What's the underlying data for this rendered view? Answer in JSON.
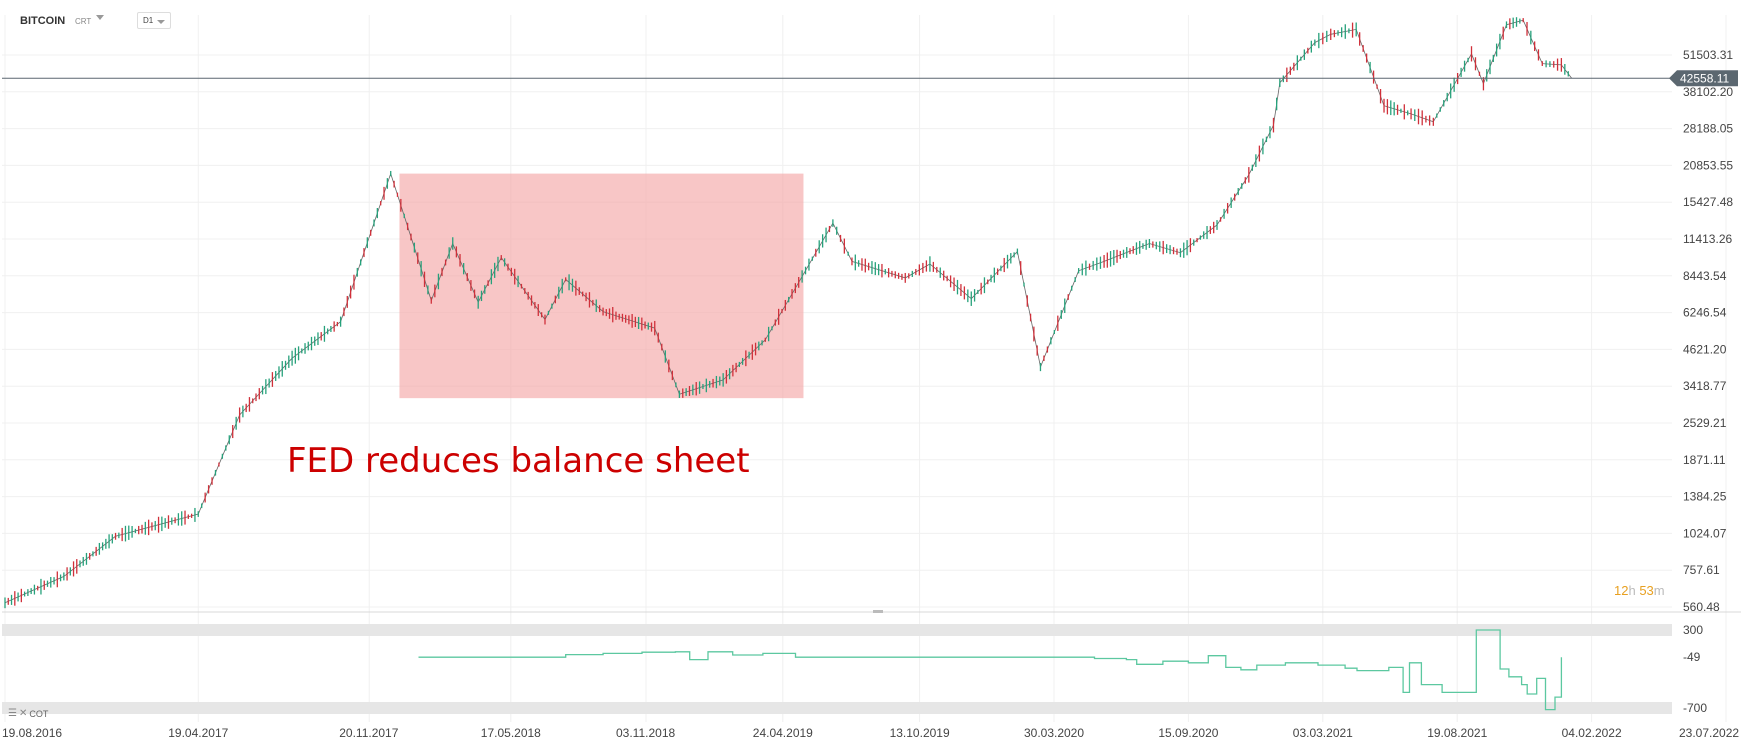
{
  "header": {
    "symbol": "BITCOIN",
    "symbol_type": "CRT",
    "timeframe": "D1"
  },
  "annotation": {
    "text": "FED reduces balance sheet",
    "color": "#cc0000"
  },
  "countdown": {
    "hours": "12",
    "hours_unit": "h",
    "minutes": "53",
    "minutes_unit": "m"
  },
  "indicator": {
    "label": "COT"
  },
  "colors": {
    "up": "#26a17b",
    "down": "#d0303a",
    "highlight": "#f4a8a8",
    "price_line": "#5b6770",
    "indicator_line": "#5cc8a0",
    "band": "#e6e6e6",
    "annotation": "#cc0000",
    "countdown": "#e8a020"
  },
  "chart_data": {
    "type": "line",
    "title": "BITCOIN",
    "y_scale": "log",
    "ylim": [
      560.48,
      59000
    ],
    "price_axis_ticks": [
      "51503.31",
      "38102.20",
      "28188.05",
      "20853.55",
      "15427.48",
      "11413.26",
      "8443.54",
      "6246.54",
      "4621.20",
      "3418.77",
      "2529.21",
      "1871.11",
      "1384.25",
      "1024.07",
      "757.61",
      "560.48"
    ],
    "price_axis_values": [
      51503.31,
      38102.2,
      28188.05,
      20853.55,
      15427.48,
      11413.26,
      8443.54,
      6246.54,
      4621.2,
      3418.77,
      2529.21,
      1871.11,
      1384.25,
      1024.07,
      757.61,
      560.48
    ],
    "date_axis": [
      "19.08.2016",
      "19.04.2017",
      "20.11.2017",
      "17.05.2018",
      "03.11.2018",
      "24.04.2019",
      "13.10.2019",
      "30.03.2020",
      "15.09.2020",
      "03.03.2021",
      "19.08.2021",
      "04.02.2022",
      "23.07.2022"
    ],
    "current_price": 42558.11,
    "current_price_label": "42558.11",
    "price_series": {
      "name": "BITCOIN",
      "x": [
        "2016-08-19",
        "2016-11-01",
        "2017-01-05",
        "2017-04-19",
        "2017-06-10",
        "2017-08-15",
        "2017-10-15",
        "2017-12-17",
        "2018-02-06",
        "2018-03-05",
        "2018-04-06",
        "2018-05-05",
        "2018-06-29",
        "2018-07-25",
        "2018-09-10",
        "2018-11-14",
        "2018-12-15",
        "2019-02-08",
        "2019-04-02",
        "2019-05-14",
        "2019-06-26",
        "2019-07-20",
        "2019-09-25",
        "2019-10-26",
        "2019-12-17",
        "2020-02-13",
        "2020-03-13",
        "2020-04-30",
        "2020-06-01",
        "2020-07-28",
        "2020-09-05",
        "2020-10-21",
        "2020-11-30",
        "2020-12-31",
        "2021-01-08",
        "2021-02-21",
        "2021-03-13",
        "2021-04-14",
        "2021-05-19",
        "2021-06-22",
        "2021-07-20",
        "2021-09-06",
        "2021-09-21",
        "2021-10-20",
        "2021-11-10",
        "2021-12-04",
        "2021-12-28",
        "2022-01-10"
      ],
      "y": [
        580,
        720,
        1000,
        1200,
        2700,
        4300,
        5800,
        19500,
        6900,
        11000,
        6800,
        9800,
        5900,
        8200,
        6300,
        5500,
        3200,
        3600,
        5000,
        8000,
        13000,
        9500,
        8300,
        9300,
        7000,
        10300,
        4000,
        8800,
        9500,
        11000,
        10200,
        12800,
        19300,
        29000,
        41000,
        57000,
        61000,
        63500,
        34000,
        31800,
        29800,
        52000,
        40700,
        66000,
        68500,
        48000,
        47500,
        42558
      ]
    },
    "highlight_period": {
      "from": "2017-12-28",
      "to": "2019-05-20",
      "low": 3100,
      "high": 19500
    },
    "indicator_chart": {
      "name": "COT",
      "ylim": [
        -700,
        300
      ],
      "ticks": [
        "300",
        "-49",
        "-700"
      ],
      "tick_values": [
        300,
        -49,
        -700
      ],
      "x": [
        "2018-01-21",
        "2018-03-30",
        "2018-06-10",
        "2018-07-25",
        "2018-09-10",
        "2018-10-29",
        "2018-12-10",
        "2018-12-28",
        "2019-01-20",
        "2019-02-20",
        "2019-03-30",
        "2019-05-10",
        "2019-07-20",
        "2019-12-01",
        "2020-03-30",
        "2020-05-20",
        "2020-06-29",
        "2020-07-12",
        "2020-08-14",
        "2020-09-15",
        "2020-10-10",
        "2020-11-01",
        "2020-11-20",
        "2020-12-10",
        "2021-01-15",
        "2021-02-25",
        "2021-03-31",
        "2021-04-15",
        "2021-05-25",
        "2021-06-12",
        "2021-06-20",
        "2021-07-05",
        "2021-07-31",
        "2021-08-09",
        "2021-08-18",
        "2021-09-12",
        "2021-10-12",
        "2021-10-23",
        "2021-11-08",
        "2021-11-15",
        "2021-11-27",
        "2021-12-08",
        "2021-12-20",
        "2021-12-28"
      ],
      "y": [
        -49,
        -49,
        -49,
        -15,
        0,
        15,
        20,
        -80,
        20,
        -20,
        0,
        -49,
        -49,
        -49,
        -49,
        -65,
        -80,
        -140,
        -100,
        -120,
        -30,
        -180,
        -210,
        -150,
        -120,
        -150,
        -190,
        -220,
        -180,
        -500,
        -120,
        -400,
        -500,
        -500,
        -500,
        300,
        -200,
        -300,
        -400,
        -520,
        -320,
        -720,
        -560,
        -49
      ]
    }
  }
}
